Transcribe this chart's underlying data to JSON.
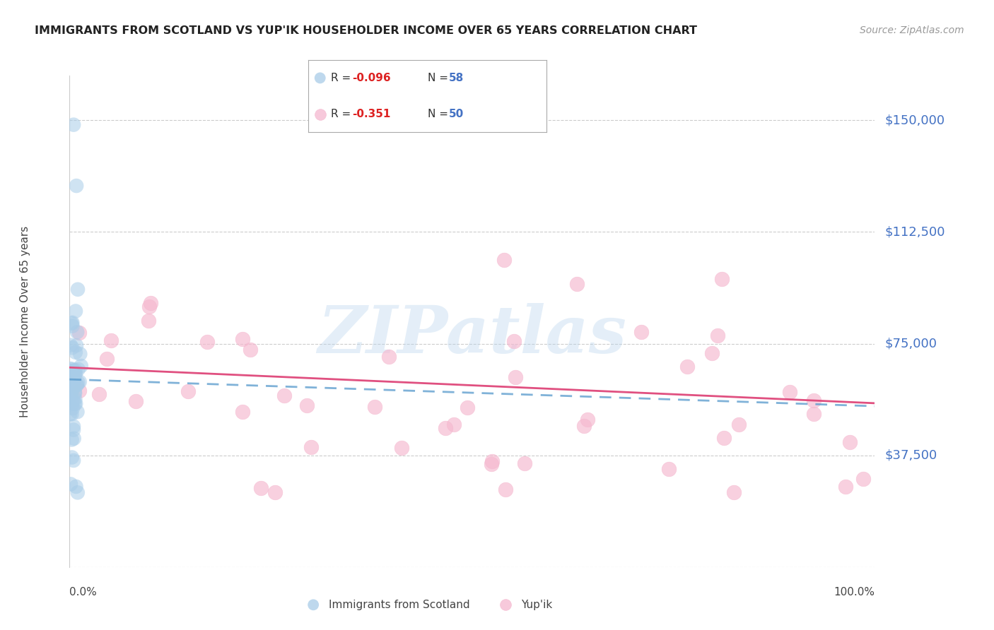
{
  "title": "IMMIGRANTS FROM SCOTLAND VS YUP'IK HOUSEHOLDER INCOME OVER 65 YEARS CORRELATION CHART",
  "source": "Source: ZipAtlas.com",
  "ylabel": "Householder Income Over 65 years",
  "ytick_labels": [
    "$37,500",
    "$75,000",
    "$112,500",
    "$150,000"
  ],
  "ytick_values": [
    37500,
    75000,
    112500,
    150000
  ],
  "ymin": 0,
  "ymax": 165000,
  "xmin": 0,
  "xmax": 100,
  "legend_R1": "-0.096",
  "legend_N1": "58",
  "legend_R2": "-0.351",
  "legend_N2": "50",
  "legend_label1": "Immigrants from Scotland",
  "legend_label2": "Yup'ik",
  "watermark": "ZIPatlas",
  "blue_scatter_color": "#a8cce8",
  "blue_line_color": "#5599cc",
  "pink_scatter_color": "#f5b8cf",
  "pink_line_color": "#e05080",
  "bg_color": "#ffffff",
  "grid_color": "#cccccc",
  "right_label_color": "#4472c4"
}
